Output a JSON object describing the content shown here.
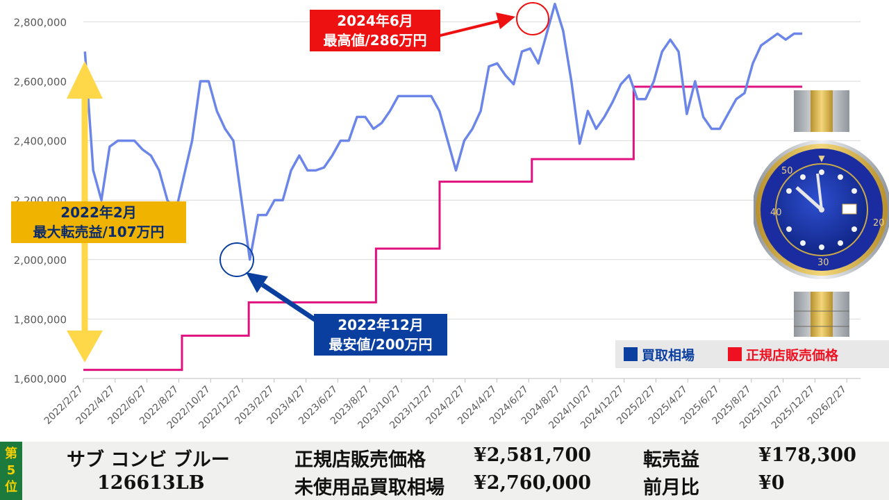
{
  "chart_data": {
    "type": "line",
    "ylim": [
      1600000,
      2850000
    ],
    "yticks": [
      "1,600,000",
      "1,800,000",
      "2,000,000",
      "2,200,000",
      "2,400,000",
      "2,600,000",
      "2,800,000"
    ],
    "ytick_values": [
      1600000,
      1800000,
      2000000,
      2200000,
      2400000,
      2600000,
      2800000
    ],
    "xticks": [
      "2022/2/27",
      "2022/4/27",
      "2022/6/27",
      "2022/8/27",
      "2022/10/27",
      "2022/12/27",
      "2023/2/27",
      "2023/4/27",
      "2023/6/27",
      "2023/8/27",
      "2023/10/27",
      "2023/12/27",
      "2024/2/27",
      "2024/4/27",
      "2024/6/27",
      "2024/8/27",
      "2024/10/27",
      "2024/12/27",
      "2025/2/27",
      "2025/4/27",
      "2025/6/27",
      "2025/8/27",
      "2025/10/27",
      "2025/12/27",
      "2026/2/27"
    ],
    "series": [
      {
        "name": "買取相場",
        "color": "#6b86e8",
        "values": [
          2700000,
          2300000,
          2200000,
          2380000,
          2400000,
          2400000,
          2400000,
          2370000,
          2350000,
          2300000,
          2200000,
          2160000,
          2280000,
          2400000,
          2600000,
          2600000,
          2500000,
          2440000,
          2400000,
          2200000,
          2000000,
          2150000,
          2150000,
          2200000,
          2200000,
          2300000,
          2350000,
          2300000,
          2300000,
          2310000,
          2350000,
          2400000,
          2400000,
          2480000,
          2480000,
          2440000,
          2460000,
          2500000,
          2550000,
          2550000,
          2550000,
          2550000,
          2550000,
          2500000,
          2400000,
          2300000,
          2400000,
          2440000,
          2500000,
          2650000,
          2660000,
          2620000,
          2590000,
          2700000,
          2710000,
          2660000,
          2760000,
          2860000,
          2770000,
          2600000,
          2390000,
          2500000,
          2440000,
          2480000,
          2530000,
          2590000,
          2620000,
          2540000,
          2540000,
          2600000,
          2700000,
          2740000,
          2700000,
          2490000,
          2600000,
          2480000,
          2440000,
          2440000,
          2490000,
          2540000,
          2560000,
          2660000,
          2720000,
          2740000,
          2760000,
          2740000,
          2760000,
          2760000
        ],
        "x_index_range": [
          0.05,
          22.6
        ]
      },
      {
        "name": "正規店販売価格",
        "color": "#e0107e",
        "steps": [
          {
            "x": 0.0,
            "y": 1629000
          },
          {
            "x": 3.1,
            "y": 1744000
          },
          {
            "x": 5.2,
            "y": 1856000
          },
          {
            "x": 9.2,
            "y": 2037000
          },
          {
            "x": 11.2,
            "y": 2262000
          },
          {
            "x": 14.1,
            "y": 2338000
          },
          {
            "x": 17.3,
            "y": 2581700
          },
          {
            "x": 22.6,
            "y": 2581700
          }
        ]
      }
    ],
    "annotations": {
      "high_label_1": "2024年6月",
      "high_label_2": "最高値/286万円",
      "low_label_1": "2022年12月",
      "low_label_2": "最安値/200万円",
      "max_label_1": "2022年2月",
      "max_label_2": "最大転売益/107万円"
    },
    "legend": [
      "買取相場",
      "正規店販売価格"
    ],
    "legend_colors": [
      "#0a3fa0",
      "#ee1122"
    ],
    "legend_position": "bottom-right"
  },
  "footer": {
    "rank": [
      "第",
      "5",
      "位"
    ],
    "model_name": "サブ コンビ ブルー",
    "ref": "126613LB",
    "retail_label": "正規店販売価格",
    "retail_value": "¥2,581,700",
    "buy_label": "未使用品買取相場",
    "buy_value": "¥2,760,000",
    "profit_label": "転売益",
    "profit_value": "¥178,300",
    "mom_label": "前月比",
    "mom_value": "¥0"
  },
  "colors": {
    "grid": "#d9d9d9",
    "rank_bg": "#1b7a3c",
    "footer_bg": "#f0f0ee"
  }
}
